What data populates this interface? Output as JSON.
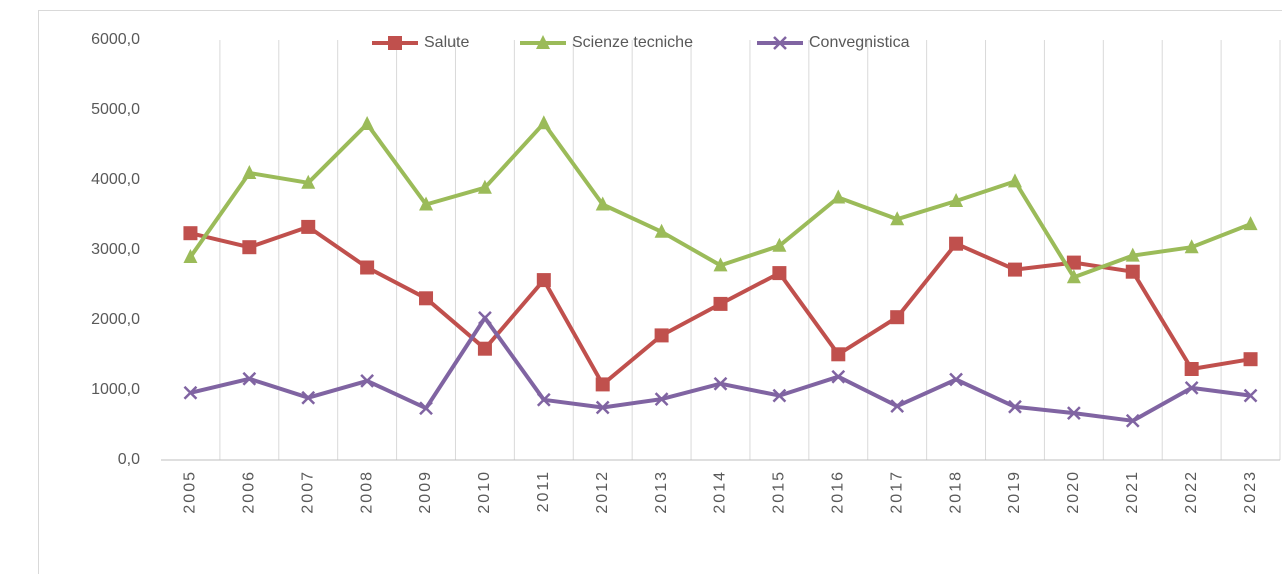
{
  "chart_data": {
    "type": "line",
    "categories": [
      "2005",
      "2006",
      "2007",
      "2008",
      "2009",
      "2010",
      "2011",
      "2012",
      "2013",
      "2014",
      "2015",
      "2016",
      "2017",
      "2018",
      "2019",
      "2020",
      "2021",
      "2022",
      "2023"
    ],
    "series": [
      {
        "name": "Salute",
        "color": "#c0504d",
        "marker": "square",
        "values": [
          3240,
          3040,
          3330,
          2750,
          2310,
          1590,
          2570,
          1080,
          1780,
          2230,
          2670,
          1510,
          2040,
          3090,
          2720,
          2820,
          2690,
          1300,
          1440
        ]
      },
      {
        "name": "Scienze tecniche",
        "color": "#9bbb59",
        "marker": "triangle",
        "values": [
          2900,
          4100,
          3960,
          4800,
          3650,
          3890,
          4810,
          3650,
          3260,
          2780,
          3060,
          3750,
          3440,
          3700,
          3980,
          2610,
          2920,
          3040,
          3370
        ]
      },
      {
        "name": "Convegnistica",
        "color": "#8064a2",
        "marker": "x",
        "values": [
          960,
          1160,
          890,
          1130,
          740,
          2030,
          860,
          750,
          870,
          1090,
          920,
          1190,
          770,
          1150,
          760,
          670,
          560,
          1030,
          920
        ]
      }
    ],
    "ylim": [
      0,
      6000
    ],
    "yticks": [
      {
        "value": 0,
        "label": "0,0"
      },
      {
        "value": 1000,
        "label": "1000,0"
      },
      {
        "value": 2000,
        "label": "2000,0"
      },
      {
        "value": 3000,
        "label": "3000,0"
      },
      {
        "value": 4000,
        "label": "4000,0"
      },
      {
        "value": 5000,
        "label": "5000,0"
      },
      {
        "value": 6000,
        "label": "6000,0"
      }
    ],
    "grid": "x",
    "legend": "top"
  }
}
